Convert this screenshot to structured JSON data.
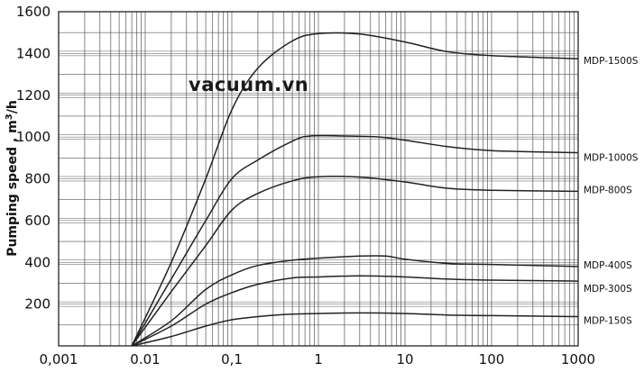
{
  "chart_data": {
    "type": "line",
    "title": "",
    "xlabel": "",
    "ylabel": "Pumping speed , m",
    "ylabel_superscript": "3",
    "ylabel_unit": "/h",
    "x_scale": "log",
    "xlim": [
      0.001,
      1000
    ],
    "ylim": [
      0,
      1600
    ],
    "x_ticks": [
      "0,001",
      "0.01",
      "0,1",
      "1",
      "10",
      "100",
      "1000"
    ],
    "y_ticks": [
      "200",
      "400",
      "600",
      "800",
      "1000",
      "1200",
      "1400",
      "1600"
    ],
    "grid": true,
    "watermark": "vacuum.vn",
    "series": [
      {
        "name": "MDP-1500S",
        "points": [
          [
            0.007,
            0
          ],
          [
            0.02,
            400
          ],
          [
            0.05,
            800
          ],
          [
            0.1,
            1130
          ],
          [
            0.2,
            1330
          ],
          [
            0.5,
            1460
          ],
          [
            1,
            1495
          ],
          [
            3,
            1493
          ],
          [
            10,
            1455
          ],
          [
            30,
            1410
          ],
          [
            100,
            1390
          ],
          [
            1000,
            1375
          ]
        ]
      },
      {
        "name": "MDP-1000S",
        "points": [
          [
            0.007,
            0
          ],
          [
            0.02,
            320
          ],
          [
            0.05,
            600
          ],
          [
            0.1,
            800
          ],
          [
            0.2,
            890
          ],
          [
            0.5,
            980
          ],
          [
            0.8,
            1005
          ],
          [
            2,
            1005
          ],
          [
            5,
            1000
          ],
          [
            10,
            985
          ],
          [
            30,
            955
          ],
          [
            100,
            935
          ],
          [
            1000,
            925
          ]
        ]
      },
      {
        "name": "MDP-800S",
        "points": [
          [
            0.007,
            0
          ],
          [
            0.02,
            260
          ],
          [
            0.05,
            480
          ],
          [
            0.1,
            650
          ],
          [
            0.2,
            730
          ],
          [
            0.5,
            790
          ],
          [
            1,
            810
          ],
          [
            3,
            808
          ],
          [
            10,
            785
          ],
          [
            30,
            755
          ],
          [
            100,
            745
          ],
          [
            1000,
            740
          ]
        ]
      },
      {
        "name": "MDP-400S",
        "points": [
          [
            0.007,
            0
          ],
          [
            0.02,
            120
          ],
          [
            0.05,
            270
          ],
          [
            0.1,
            340
          ],
          [
            0.2,
            385
          ],
          [
            0.5,
            410
          ],
          [
            1,
            420
          ],
          [
            3,
            430
          ],
          [
            6,
            430
          ],
          [
            10,
            415
          ],
          [
            30,
            395
          ],
          [
            100,
            390
          ],
          [
            1000,
            380
          ]
        ]
      },
      {
        "name": "MDP-300S",
        "points": [
          [
            0.007,
            0
          ],
          [
            0.02,
            95
          ],
          [
            0.05,
            200
          ],
          [
            0.1,
            255
          ],
          [
            0.2,
            295
          ],
          [
            0.5,
            325
          ],
          [
            1,
            330
          ],
          [
            3,
            335
          ],
          [
            10,
            330
          ],
          [
            30,
            320
          ],
          [
            100,
            315
          ],
          [
            1000,
            310
          ]
        ]
      },
      {
        "name": "MDP-150S",
        "points": [
          [
            0.007,
            0
          ],
          [
            0.02,
            45
          ],
          [
            0.05,
            95
          ],
          [
            0.1,
            125
          ],
          [
            0.2,
            140
          ],
          [
            0.5,
            152
          ],
          [
            1,
            155
          ],
          [
            3,
            158
          ],
          [
            10,
            155
          ],
          [
            30,
            148
          ],
          [
            100,
            145
          ],
          [
            1000,
            140
          ]
        ]
      }
    ]
  }
}
